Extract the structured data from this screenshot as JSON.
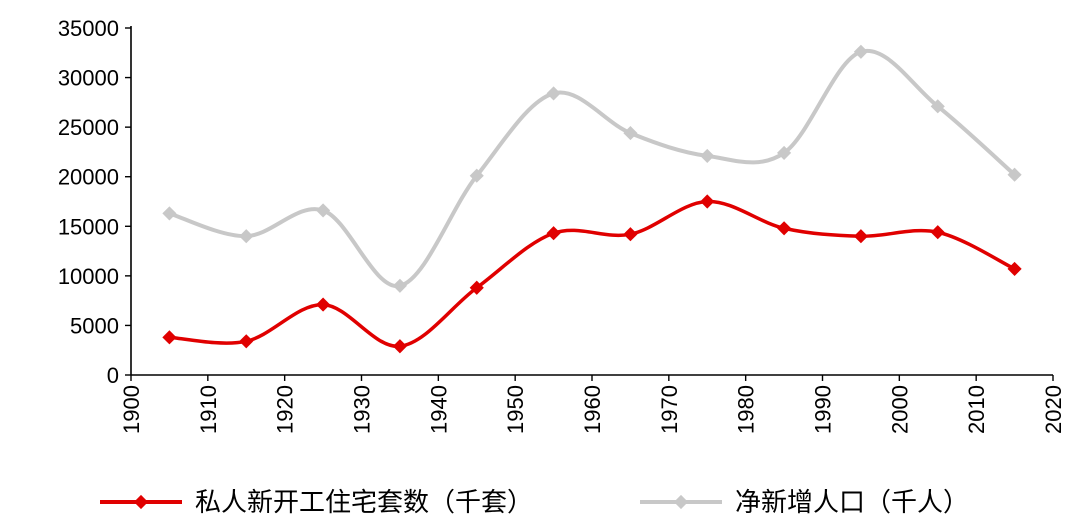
{
  "chart_data": {
    "type": "line",
    "title": "",
    "xlabel": "",
    "ylabel": "",
    "xlim": [
      1900,
      2020
    ],
    "ylim": [
      0,
      35000
    ],
    "x_ticks": [
      "1900",
      "1910",
      "1920",
      "1930",
      "1940",
      "1950",
      "1960",
      "1970",
      "1980",
      "1990",
      "2000",
      "2010",
      "2020"
    ],
    "y_ticks": [
      "0",
      "5000",
      "10000",
      "15000",
      "20000",
      "25000",
      "30000",
      "35000"
    ],
    "grid": false,
    "legend_position": "bottom",
    "x": [
      1905,
      1915,
      1925,
      1935,
      1945,
      1955,
      1965,
      1975,
      1985,
      1995,
      2005,
      2015
    ],
    "series": [
      {
        "name": "私人新开工住宅套数（千套）",
        "color": "#e00000",
        "values": [
          3800,
          3400,
          7100,
          2900,
          8800,
          14300,
          14200,
          17500,
          14800,
          14000,
          14400,
          10700
        ]
      },
      {
        "name": "净新增人口（千人）",
        "color": "#c8c8c8",
        "values": [
          16300,
          14000,
          16600,
          9000,
          20100,
          28400,
          24400,
          22100,
          22400,
          32600,
          27100,
          20200
        ]
      }
    ]
  }
}
